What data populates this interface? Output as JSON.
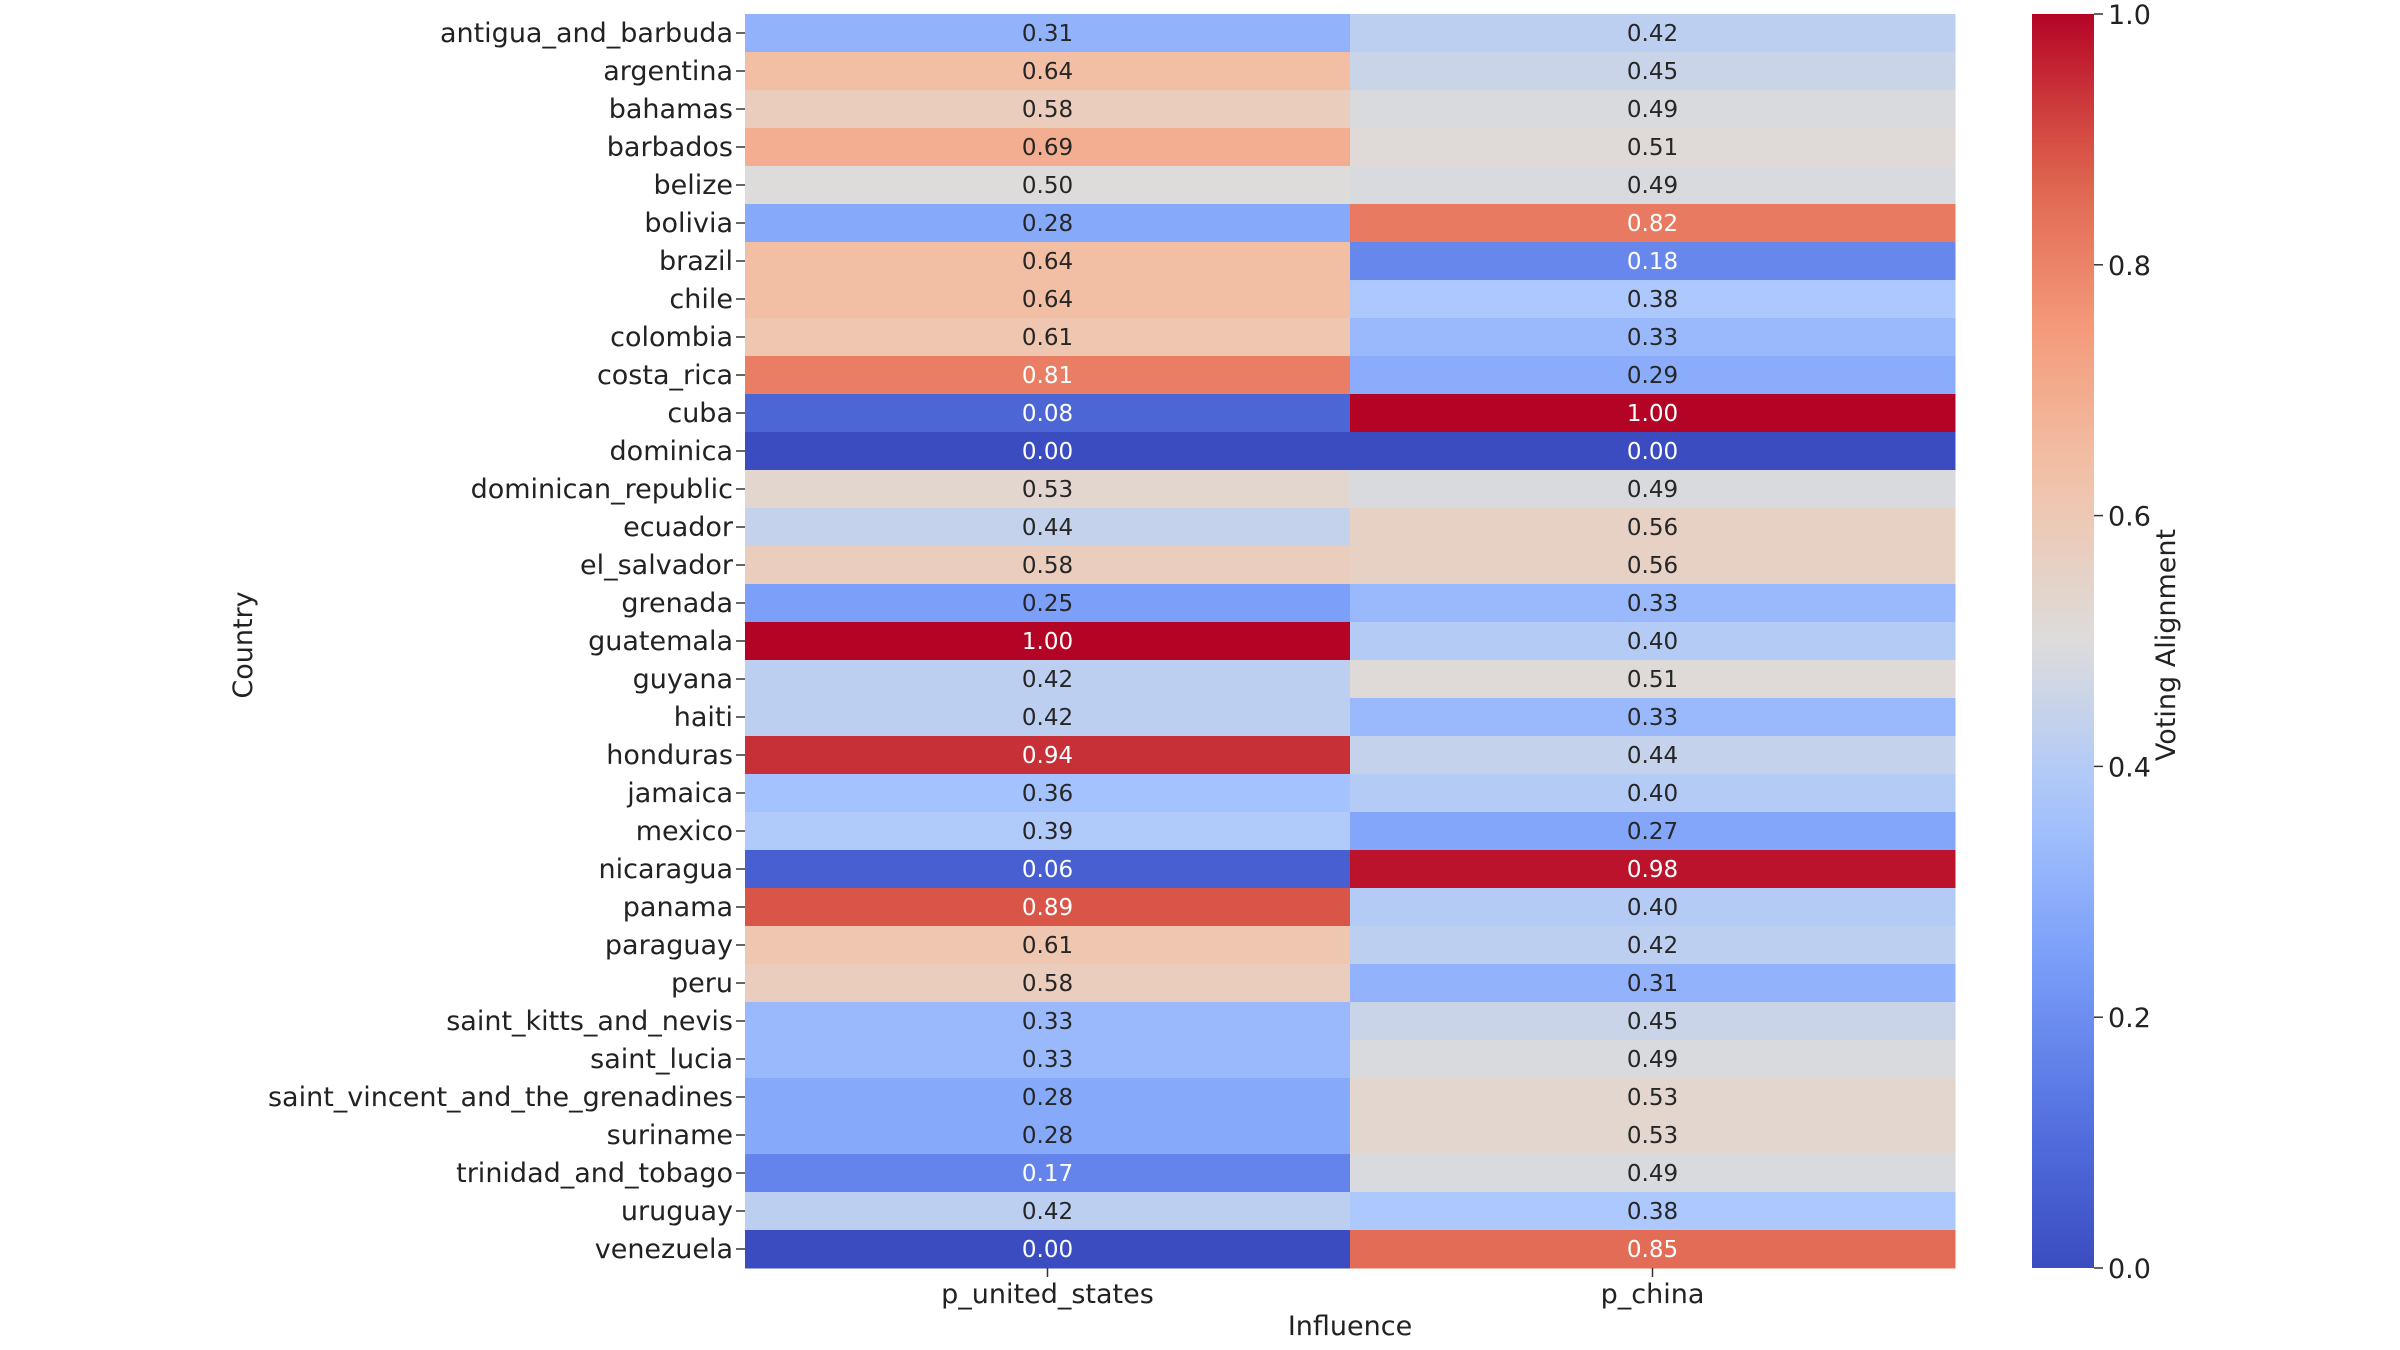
{
  "chart_data": {
    "type": "heatmap",
    "title": "",
    "xlabel": "Influence",
    "ylabel": "Country",
    "colorbar_label": "Voting Alignment",
    "colormap": "coolwarm",
    "vmin": 0.0,
    "vmax": 1.0,
    "colorbar_ticks": [
      "0.0",
      "0.2",
      "0.4",
      "0.6",
      "0.8",
      "1.0"
    ],
    "columns": [
      "p_united_states",
      "p_china"
    ],
    "rows": [
      "antigua_and_barbuda",
      "argentina",
      "bahamas",
      "barbados",
      "belize",
      "bolivia",
      "brazil",
      "chile",
      "colombia",
      "costa_rica",
      "cuba",
      "dominica",
      "dominican_republic",
      "ecuador",
      "el_salvador",
      "grenada",
      "guatemala",
      "guyana",
      "haiti",
      "honduras",
      "jamaica",
      "mexico",
      "nicaragua",
      "panama",
      "paraguay",
      "peru",
      "saint_kitts_and_nevis",
      "saint_lucia",
      "saint_vincent_and_the_grenadines",
      "suriname",
      "trinidad_and_tobago",
      "uruguay",
      "venezuela"
    ],
    "values": [
      [
        0.31,
        0.42
      ],
      [
        0.64,
        0.45
      ],
      [
        0.58,
        0.49
      ],
      [
        0.69,
        0.51
      ],
      [
        0.5,
        0.49
      ],
      [
        0.28,
        0.82
      ],
      [
        0.64,
        0.18
      ],
      [
        0.64,
        0.38
      ],
      [
        0.61,
        0.33
      ],
      [
        0.81,
        0.29
      ],
      [
        0.08,
        1.0
      ],
      [
        0.0,
        0.0
      ],
      [
        0.53,
        0.49
      ],
      [
        0.44,
        0.56
      ],
      [
        0.58,
        0.56
      ],
      [
        0.25,
        0.33
      ],
      [
        1.0,
        0.4
      ],
      [
        0.42,
        0.51
      ],
      [
        0.42,
        0.33
      ],
      [
        0.94,
        0.44
      ],
      [
        0.36,
        0.4
      ],
      [
        0.39,
        0.27
      ],
      [
        0.06,
        0.98
      ],
      [
        0.89,
        0.4
      ],
      [
        0.61,
        0.42
      ],
      [
        0.58,
        0.31
      ],
      [
        0.33,
        0.45
      ],
      [
        0.33,
        0.49
      ],
      [
        0.28,
        0.53
      ],
      [
        0.28,
        0.53
      ],
      [
        0.17,
        0.49
      ],
      [
        0.42,
        0.38
      ],
      [
        0.0,
        0.85
      ]
    ],
    "grid": false
  }
}
